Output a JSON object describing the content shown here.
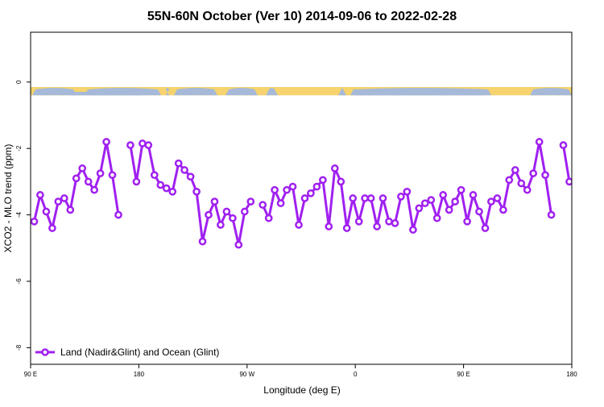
{
  "chart_data": {
    "type": "line",
    "title": "55N-60N October (Ver 10)   2014-09-06 to 2022-02-28",
    "xlabel": "Longitude (deg E)",
    "ylabel": "XCO2 - MLO trend (ppm)",
    "x_ticks": [
      {
        "value": 90,
        "label": "90 E"
      },
      {
        "value": 180,
        "label": "180"
      },
      {
        "value": 270,
        "label": "90 W"
      },
      {
        "value": 360,
        "label": "0"
      },
      {
        "value": 450,
        "label": "90 E"
      },
      {
        "value": 540,
        "label": "180"
      }
    ],
    "y_ticks": [
      0,
      -2,
      -4,
      -6,
      -8
    ],
    "xlim": [
      90,
      540
    ],
    "ylim": [
      -8.5,
      1.5
    ],
    "grid": false,
    "legend_position": "bottom-left",
    "land_ocean_band": {
      "y_top": -0.15,
      "y_bottom": -0.4,
      "land_color": "#f6d36e",
      "ocean_color": "#a6b9d8"
    },
    "series": [
      {
        "name": "Land (Nadir&Glint) and Ocean (Glint)",
        "color": "#a020f0",
        "segments": [
          [
            [
              93,
              -4.2
            ],
            [
              98,
              -3.4
            ],
            [
              103,
              -3.9
            ],
            [
              108,
              -4.4
            ],
            [
              113,
              -3.6
            ],
            [
              118,
              -3.5
            ],
            [
              123,
              -3.85
            ],
            [
              128,
              -2.9
            ],
            [
              133,
              -2.6
            ],
            [
              138,
              -3.0
            ],
            [
              143,
              -3.25
            ],
            [
              148,
              -2.75
            ],
            [
              153,
              -1.8
            ],
            [
              158,
              -2.8
            ],
            [
              163,
              -4.0
            ]
          ],
          [
            [
              173,
              -1.9
            ],
            [
              178,
              -3.0
            ],
            [
              183,
              -1.85
            ],
            [
              188,
              -1.9
            ],
            [
              193,
              -2.8
            ],
            [
              198,
              -3.1
            ],
            [
              203,
              -3.2
            ],
            [
              208,
              -3.3
            ],
            [
              213,
              -2.45
            ],
            [
              218,
              -2.65
            ],
            [
              223,
              -2.85
            ],
            [
              228,
              -3.3
            ],
            [
              233,
              -4.8
            ],
            [
              238,
              -4.0
            ],
            [
              243,
              -3.6
            ],
            [
              248,
              -4.3
            ],
            [
              253,
              -3.9
            ],
            [
              258,
              -4.1
            ],
            [
              263,
              -4.9
            ],
            [
              268,
              -3.9
            ],
            [
              273,
              -3.6
            ]
          ],
          [
            [
              283,
              -3.7
            ],
            [
              288,
              -4.1
            ],
            [
              293,
              -3.25
            ],
            [
              298,
              -3.65
            ],
            [
              303,
              -3.25
            ],
            [
              308,
              -3.15
            ],
            [
              313,
              -4.3
            ],
            [
              318,
              -3.5
            ],
            [
              323,
              -3.35
            ],
            [
              328,
              -3.15
            ],
            [
              333,
              -2.95
            ],
            [
              338,
              -4.35
            ],
            [
              343,
              -2.6
            ],
            [
              348,
              -3.0
            ],
            [
              353,
              -4.4
            ],
            [
              358,
              -3.5
            ],
            [
              363,
              -4.2
            ],
            [
              368,
              -3.5
            ],
            [
              373,
              -3.5
            ],
            [
              378,
              -4.35
            ],
            [
              383,
              -3.5
            ],
            [
              388,
              -4.2
            ],
            [
              393,
              -4.25
            ],
            [
              398,
              -3.45
            ],
            [
              403,
              -3.3
            ],
            [
              408,
              -4.45
            ],
            [
              413,
              -3.8
            ],
            [
              418,
              -3.65
            ],
            [
              423,
              -3.55
            ],
            [
              428,
              -4.1
            ],
            [
              433,
              -3.4
            ],
            [
              438,
              -3.85
            ],
            [
              443,
              -3.6
            ],
            [
              448,
              -3.25
            ],
            [
              453,
              -4.2
            ],
            [
              458,
              -3.4
            ],
            [
              463,
              -3.9
            ],
            [
              468,
              -4.4
            ],
            [
              473,
              -3.6
            ],
            [
              478,
              -3.5
            ],
            [
              483,
              -3.85
            ],
            [
              488,
              -2.95
            ],
            [
              493,
              -2.65
            ],
            [
              498,
              -3.05
            ],
            [
              503,
              -3.25
            ],
            [
              508,
              -2.75
            ],
            [
              513,
              -1.8
            ],
            [
              518,
              -2.8
            ],
            [
              523,
              -4.0
            ]
          ],
          [
            [
              533,
              -1.9
            ],
            [
              538,
              -3.0
            ]
          ]
        ]
      }
    ]
  }
}
